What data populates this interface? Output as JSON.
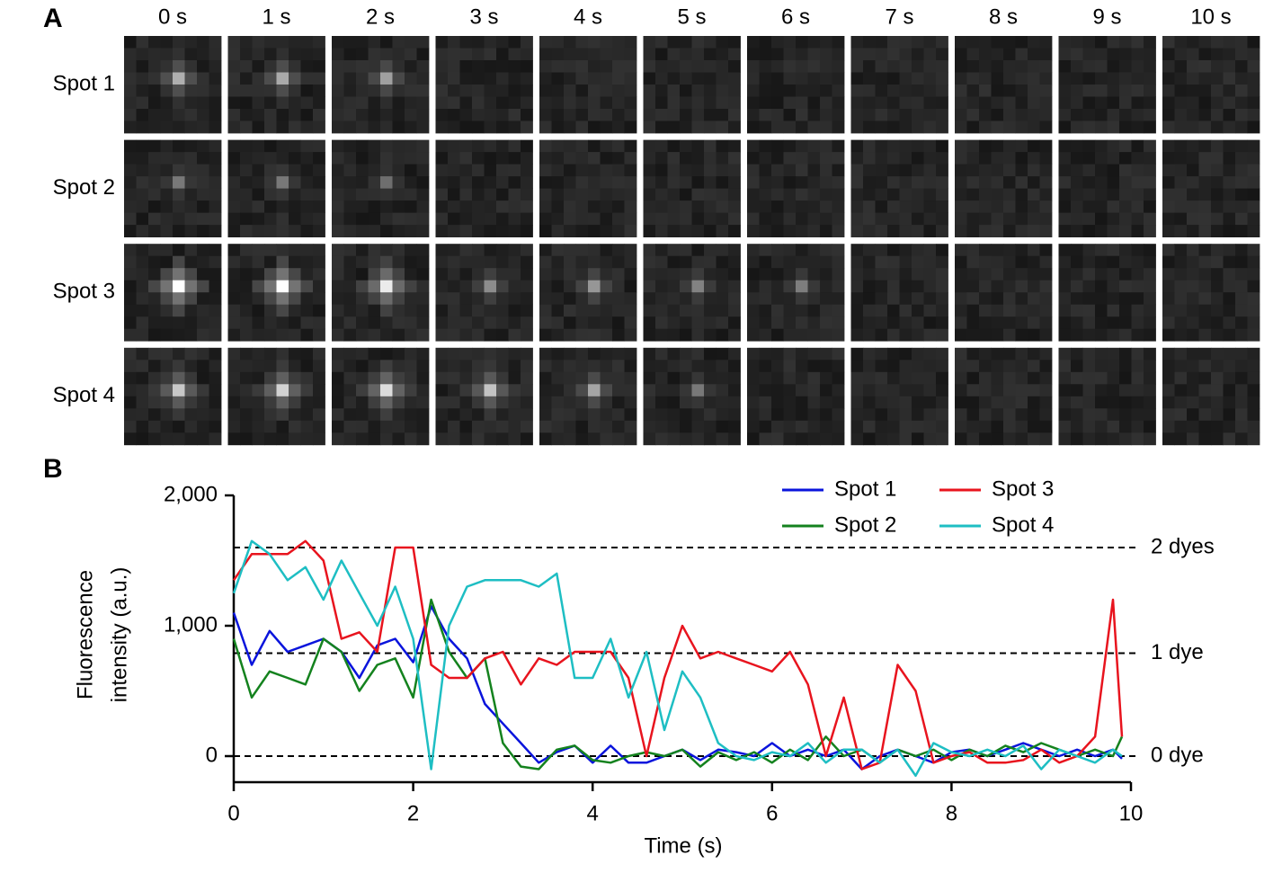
{
  "panel_a": {
    "label": "A",
    "columns": [
      "0 s",
      "1 s",
      "2 s",
      "3 s",
      "4 s",
      "5 s",
      "6 s",
      "7 s",
      "8 s",
      "9 s",
      "10 s"
    ],
    "rows": [
      "Spot 1",
      "Spot 2",
      "Spot 3",
      "Spot 4"
    ]
  },
  "chart_data": {
    "type": "line",
    "panel_label": "B",
    "xlabel": "Time (s)",
    "ylabel": [
      "Fluorescence",
      "intensity (a.u.)"
    ],
    "x": [
      0,
      0.2,
      0.4,
      0.6,
      0.8,
      1.0,
      1.2,
      1.4,
      1.6,
      1.8,
      2.0,
      2.2,
      2.4,
      2.6,
      2.8,
      3.0,
      3.2,
      3.4,
      3.6,
      3.8,
      4.0,
      4.2,
      4.4,
      4.6,
      4.8,
      5.0,
      5.2,
      5.4,
      5.6,
      5.8,
      6.0,
      6.2,
      6.4,
      6.6,
      6.8,
      7.0,
      7.2,
      7.4,
      7.6,
      7.8,
      8.0,
      8.2,
      8.4,
      8.6,
      8.8,
      9.0,
      9.2,
      9.4,
      9.6,
      9.8,
      9.9
    ],
    "series": [
      {
        "name": "Spot 1",
        "color": "#0a14dc",
        "values": [
          1100,
          700,
          960,
          800,
          850,
          900,
          800,
          600,
          850,
          900,
          720,
          1150,
          900,
          750,
          400,
          250,
          100,
          -50,
          30,
          80,
          -50,
          80,
          -50,
          -50,
          0,
          50,
          -30,
          50,
          30,
          0,
          100,
          0,
          50,
          0,
          50,
          -100,
          0,
          50,
          0,
          -50,
          30,
          50,
          0,
          50,
          100,
          50,
          0,
          50,
          0,
          50,
          -20
        ]
      },
      {
        "name": "Spot 2",
        "color": "#14821e",
        "values": [
          900,
          450,
          650,
          600,
          550,
          900,
          800,
          500,
          700,
          750,
          450,
          1200,
          800,
          600,
          750,
          100,
          -80,
          -100,
          50,
          80,
          -30,
          -50,
          0,
          30,
          0,
          50,
          -80,
          30,
          -30,
          30,
          -50,
          50,
          -30,
          150,
          0,
          50,
          -50,
          50,
          0,
          50,
          -30,
          50,
          0,
          80,
          30,
          100,
          50,
          0,
          50,
          0,
          150
        ]
      },
      {
        "name": "Spot 3",
        "color": "#e8141e",
        "values": [
          1350,
          1550,
          1550,
          1550,
          1650,
          1500,
          900,
          950,
          800,
          1600,
          1600,
          700,
          600,
          600,
          750,
          800,
          550,
          750,
          700,
          800,
          800,
          800,
          600,
          0,
          600,
          1000,
          750,
          800,
          750,
          700,
          650,
          800,
          550,
          0,
          450,
          -100,
          -50,
          700,
          500,
          -50,
          0,
          30,
          -50,
          -50,
          -30,
          50,
          -50,
          0,
          150,
          1200,
          150
        ]
      },
      {
        "name": "Spot 4",
        "color": "#1ebec3",
        "values": [
          1250,
          1650,
          1550,
          1350,
          1450,
          1200,
          1500,
          1250,
          1000,
          1300,
          900,
          -100,
          1000,
          1300,
          1350,
          1350,
          1350,
          1300,
          1400,
          600,
          600,
          900,
          450,
          800,
          200,
          650,
          450,
          100,
          0,
          -30,
          30,
          0,
          100,
          -50,
          50,
          50,
          -50,
          50,
          -150,
          100,
          30,
          0,
          50,
          0,
          80,
          -100,
          50,
          0,
          -50,
          50,
          0
        ]
      }
    ],
    "xlim": [
      0,
      10
    ],
    "ylim": [
      -200,
      2000
    ],
    "xticks": [
      0,
      2,
      4,
      6,
      8,
      10
    ],
    "yticks": [
      0,
      {
        "value": 1000,
        "label": "1,000"
      },
      {
        "value": 2000,
        "label": "2,000"
      }
    ],
    "annotations": [
      {
        "text": "2 dyes",
        "y": 1600
      },
      {
        "text": "1 dye",
        "y": 790
      },
      {
        "text": "0 dye",
        "y": 0
      }
    ]
  }
}
